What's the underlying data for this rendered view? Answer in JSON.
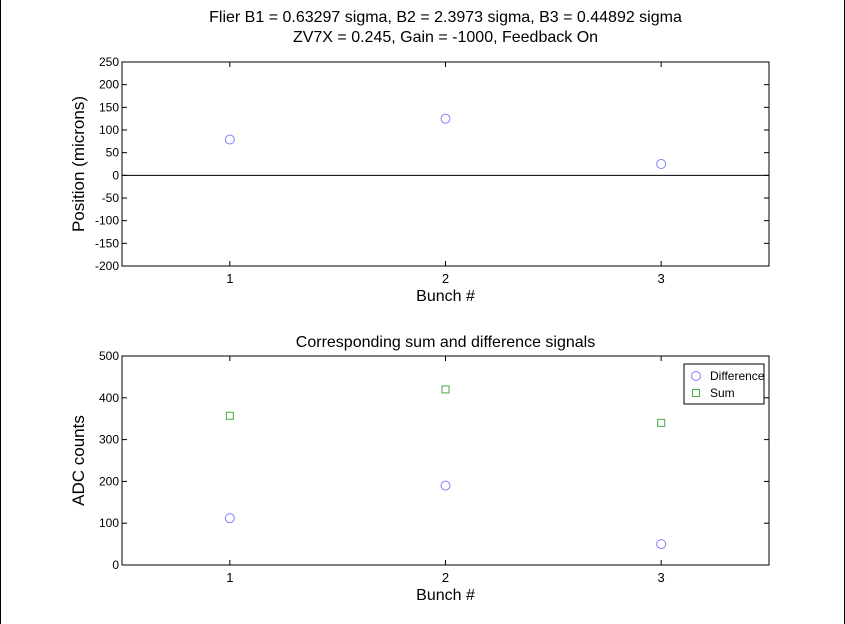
{
  "chart_data": [
    {
      "type": "scatter",
      "title_lines": [
        "Flier B1 = 0.63297 sigma,  B2 = 2.3973 sigma,  B3 = 0.44892 sigma",
        "ZV7X = 0.245, Gain = -1000, Feedback On"
      ],
      "xlabel": "Bunch #",
      "ylabel": "Position (microns)",
      "xlim": [
        0.5,
        3.5
      ],
      "ylim": [
        -200,
        250
      ],
      "x_ticks": [
        1,
        2,
        3
      ],
      "y_ticks": [
        -200,
        -150,
        -100,
        -50,
        0,
        50,
        100,
        150,
        200,
        250
      ],
      "zero_line": true,
      "legend": "none",
      "series": [
        {
          "marker": "circle",
          "color": "#8080ff",
          "x": [
            1,
            2,
            3
          ],
          "values": [
            79,
            125,
            25
          ]
        }
      ]
    },
    {
      "type": "scatter",
      "title": "Corresponding sum and difference signals",
      "xlabel": "Bunch #",
      "ylabel": "ADC counts",
      "xlim": [
        0.5,
        3.5
      ],
      "ylim": [
        0,
        500
      ],
      "x_ticks": [
        1,
        2,
        3
      ],
      "y_ticks": [
        0,
        100,
        200,
        300,
        400,
        500
      ],
      "legend": "top-right",
      "series": [
        {
          "name": "Difference",
          "marker": "circle",
          "color": "#8080ff",
          "x": [
            1,
            2,
            3
          ],
          "values": [
            112,
            190,
            50
          ]
        },
        {
          "name": "Sum",
          "marker": "square",
          "color": "#44aa44",
          "x": [
            1,
            2,
            3
          ],
          "values": [
            357,
            420,
            340
          ]
        }
      ]
    }
  ]
}
